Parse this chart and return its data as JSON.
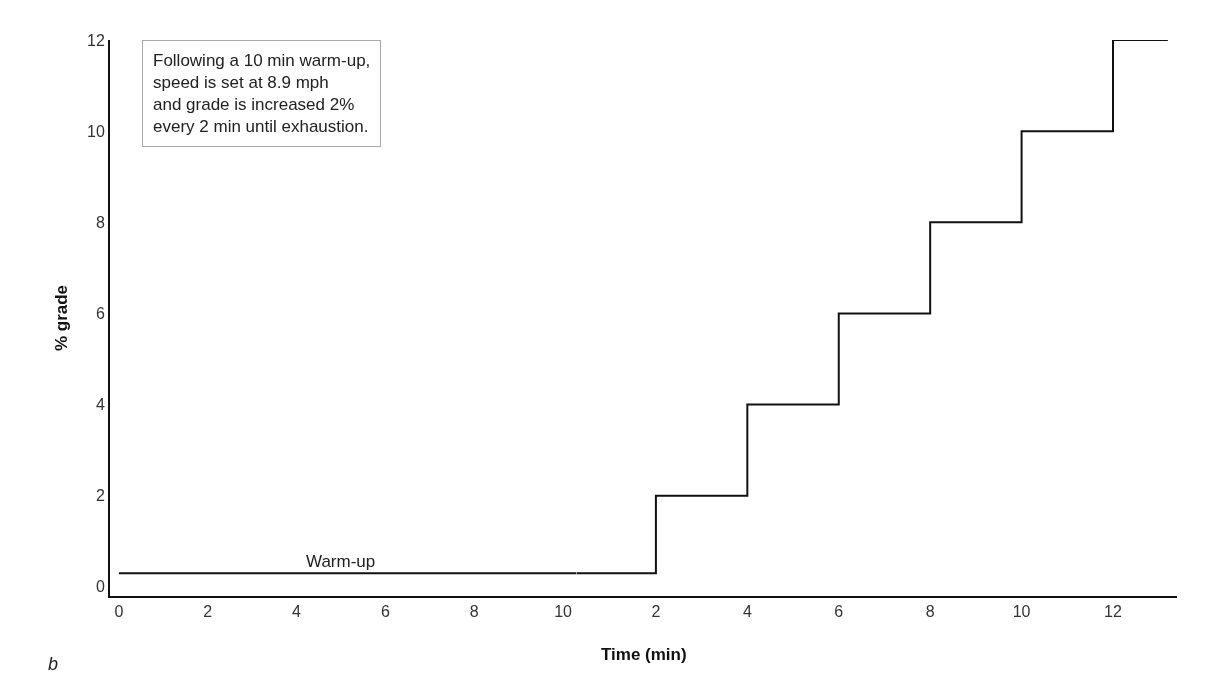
{
  "chart_data": [
    {
      "type": "step",
      "ylabel": "% grade",
      "x": [
        0,
        10.3
      ],
      "series": [
        {
          "color": "#111111",
          "values": [
            0.3,
            0.3
          ]
        }
      ],
      "xlim": [
        -0.2,
        10.3
      ],
      "xticks": [
        0,
        2,
        4,
        6,
        8,
        10
      ],
      "ylim": [
        -0.2,
        12
      ],
      "yticks": [
        0,
        2,
        4,
        6,
        8,
        10,
        12
      ],
      "marker": "none",
      "line_style": "solid",
      "annotations": [
        "Following a 10 min warm-up,\nspeed is set at 8.9 mph\nand grade is increased 2%\nevery 2 min until exhaustion.",
        {
          "text": "Warm-up",
          "x": 5,
          "y": 0.3
        },
        "b"
      ]
    },
    {
      "type": "step",
      "xlabel": "Time (min)",
      "x": [
        0.26,
        2,
        4,
        6,
        8,
        10,
        12,
        13.2
      ],
      "series": [
        {
          "color": "#111111",
          "values": [
            0.3,
            2,
            4,
            6,
            8,
            10,
            12,
            12
          ]
        }
      ],
      "xlim": [
        0.26,
        13.4
      ],
      "xticks": [
        2,
        4,
        6,
        8,
        10,
        12
      ],
      "ylim": [
        -0.2,
        12
      ],
      "yticks": [
        0,
        2,
        4,
        6,
        8,
        10,
        12
      ],
      "tick_labels": "x",
      "marker": "none",
      "line_style": "solid"
    }
  ]
}
